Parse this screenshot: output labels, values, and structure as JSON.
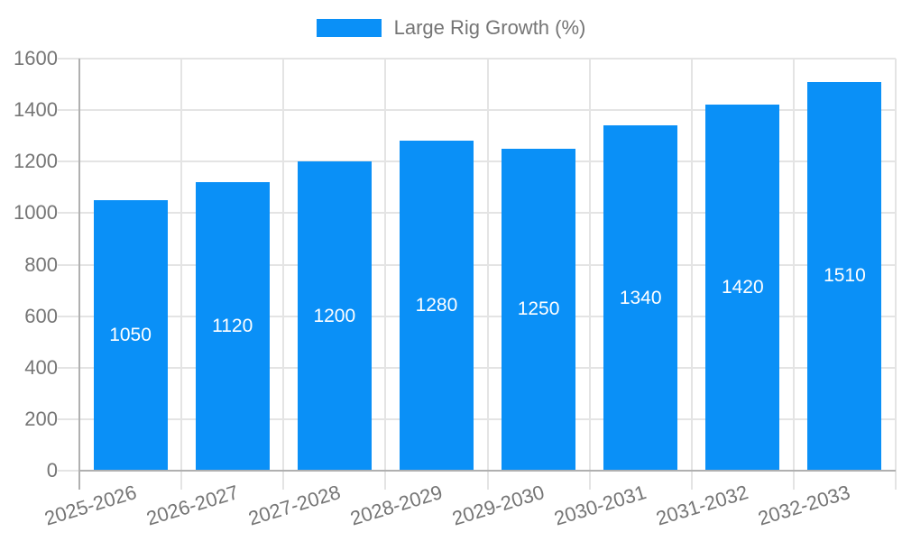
{
  "chart_data": {
    "type": "bar",
    "title": "",
    "legend": {
      "label": "Large Rig Growth (%)",
      "position": "top"
    },
    "categories": [
      "2025-2026",
      "2026-2027",
      "2027-2028",
      "2028-2029",
      "2029-2030",
      "2030-2031",
      "2031-2032",
      "2032-2033"
    ],
    "values": [
      1050,
      1120,
      1200,
      1280,
      1250,
      1340,
      1420,
      1510
    ],
    "value_labels": [
      "1050",
      "1120",
      "1200",
      "1280",
      "1250",
      "1340",
      "1420",
      "1510"
    ],
    "xlabel": "",
    "ylabel": "",
    "ylim": [
      0,
      1600
    ],
    "yticks": [
      0,
      200,
      400,
      600,
      800,
      1000,
      1200,
      1400,
      1600
    ],
    "grid": "on",
    "colors": {
      "bar": "#0a90f7",
      "grid_line": "#e4e4e4",
      "axis_line": "#b0b0b0",
      "tick_text": "#757575",
      "bar_label_text": "#ffffff"
    }
  }
}
